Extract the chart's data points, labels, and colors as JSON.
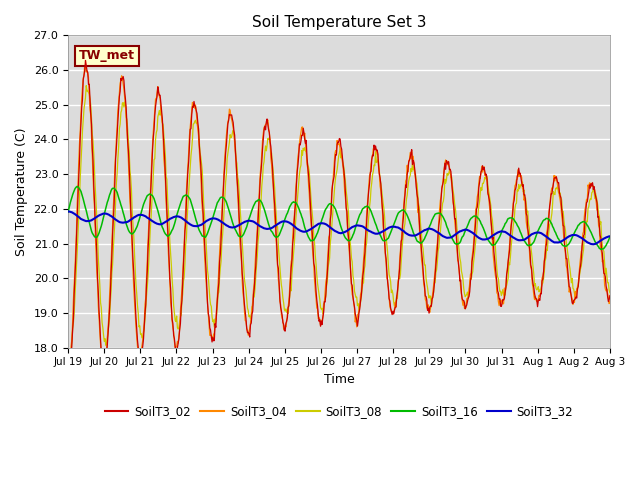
{
  "title": "Soil Temperature Set 3",
  "xlabel": "Time",
  "ylabel": "Soil Temperature (C)",
  "ylim": [
    18.0,
    27.0
  ],
  "yticks": [
    18.0,
    19.0,
    20.0,
    21.0,
    22.0,
    23.0,
    24.0,
    25.0,
    26.0,
    27.0
  ],
  "plot_bg_color": "#dcdcdc",
  "series_colors": {
    "SoilT3_02": "#cc0000",
    "SoilT3_04": "#ff8800",
    "SoilT3_08": "#cccc00",
    "SoilT3_16": "#00bb00",
    "SoilT3_32": "#0000cc"
  },
  "annotation_text": "TW_met",
  "annotation_box_color": "#ffffcc",
  "annotation_border_color": "#880000",
  "n_points": 720,
  "start_day": 0,
  "end_day": 15.0,
  "xtick_positions": [
    0,
    1,
    2,
    3,
    4,
    5,
    6,
    7,
    8,
    9,
    10,
    11,
    12,
    13,
    14,
    15
  ],
  "xtick_labels": [
    "Jul 19",
    "Jul 20",
    "Jul 21",
    "Jul 22",
    "Jul 23",
    "Jul 24",
    "Jul 25",
    "Jul 26",
    "Jul 27",
    "Jul 28",
    "Jul 29",
    "Jul 30",
    "Jul 31",
    "Aug 1",
    "Aug 2",
    "Aug 3"
  ]
}
